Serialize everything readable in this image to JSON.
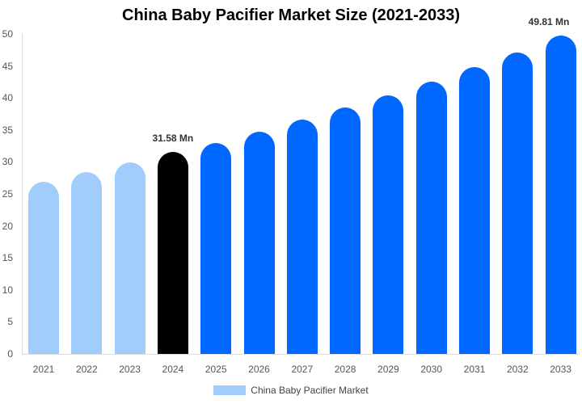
{
  "chart_data": {
    "type": "bar",
    "title": "China Baby Pacifier Market Size (2021-2033)",
    "categories": [
      "2021",
      "2022",
      "2023",
      "2024",
      "2025",
      "2026",
      "2027",
      "2028",
      "2029",
      "2030",
      "2031",
      "2032",
      "2033"
    ],
    "series": [
      {
        "name": "China Baby Pacifier Market",
        "values": [
          26.9,
          28.4,
          29.9,
          31.58,
          33.0,
          34.7,
          36.6,
          38.5,
          40.4,
          42.5,
          44.8,
          47.1,
          49.81
        ]
      }
    ],
    "bar_colors": [
      "#a0cdfc",
      "#a0cdfc",
      "#a0cdfc",
      "#000000",
      "#0068ff",
      "#0068ff",
      "#0068ff",
      "#0068ff",
      "#0068ff",
      "#0068ff",
      "#0068ff",
      "#0068ff",
      "#0068ff"
    ],
    "annotations": [
      {
        "category": "2024",
        "text": "31.58 Mn"
      },
      {
        "category": "2033",
        "text": "49.81 Mn"
      }
    ],
    "xlabel": "",
    "ylabel": "",
    "ylim": [
      0,
      50
    ],
    "yticks": [
      0,
      5,
      10,
      15,
      20,
      25,
      30,
      35,
      40,
      45,
      50
    ],
    "grid": false,
    "legend_position": "bottom"
  },
  "legend": {
    "label": "China Baby Pacifier Market",
    "color": "#a0cdfc"
  }
}
